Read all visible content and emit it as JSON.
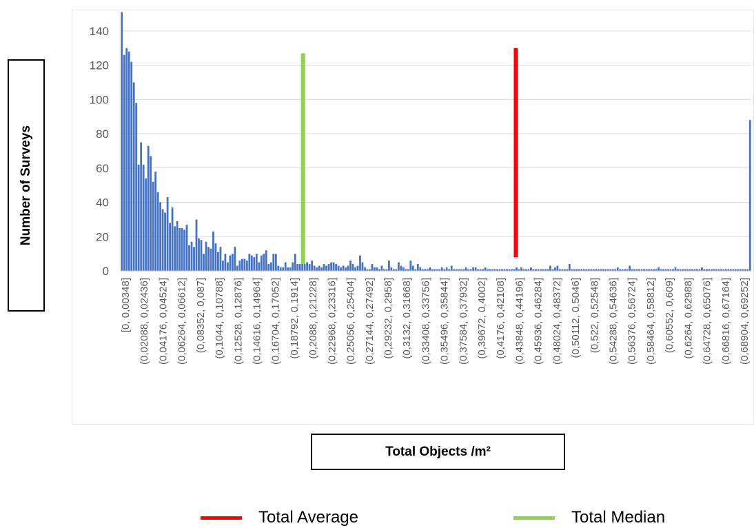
{
  "chart_data": {
    "type": "bar",
    "xlabel": "Total Objects /m²",
    "ylabel": "Number of Surveys",
    "ylim": [
      0,
      150
    ],
    "yticks": [
      0,
      20,
      40,
      60,
      80,
      100,
      120,
      140
    ],
    "bar_color": "#4472c4",
    "grid": true,
    "tick_labels": [
      "[0, 0,00348]",
      "(0,02088, 0,02436]",
      "(0,04176, 0,04524]",
      "(0,06264, 0,06612]",
      "(0,08352, 0,087]",
      "(0,1044, 0,10788]",
      "(0,12528, 0,12876]",
      "(0,14616, 0,14964]",
      "(0,16704, 0,17052]",
      "(0,18792, 0,1914]",
      "(0,2088, 0,21228]",
      "(0,22968, 0,23316]",
      "(0,25056, 0,25404]",
      "(0,27144, 0,27492]",
      "(0,29232, 0,2958]",
      "(0,3132, 0,31668]",
      "(0,33408, 0,33756]",
      "(0,35496, 0,35844]",
      "(0,37584, 0,37932]",
      "(0,39672, 0,4002]",
      "(0,4176, 0,42108]",
      "(0,43848, 0,44196]",
      "(0,45936, 0,46284]",
      "(0,48024, 0,48372]",
      "(0,50112, 0,5046]",
      "(0,522, 0,52548]",
      "(0,54288, 0,54636]",
      "(0,56376, 0,56724]",
      "(0,58464, 0,58812]",
      "(0,60552, 0,609]",
      "(0,6264, 0,62988]",
      "(0,64728, 0,65076]",
      "(0,66816, 0,67164]",
      "(0,68904, 0,69252]"
    ],
    "values": [
      151,
      126,
      130,
      128,
      122,
      110,
      98,
      62,
      75,
      62,
      54,
      73,
      67,
      52,
      58,
      46,
      40,
      36,
      34,
      43,
      28,
      37,
      26,
      29,
      25,
      25,
      24,
      27,
      15,
      17,
      14,
      30,
      19,
      18,
      10,
      17,
      14,
      13,
      23,
      16,
      11,
      14,
      6,
      10,
      5,
      9,
      10,
      14,
      3,
      6,
      7,
      7,
      6,
      10,
      9,
      8,
      10,
      5,
      9,
      10,
      12,
      4,
      5,
      10,
      10,
      3,
      2,
      2,
      5,
      2,
      2,
      5,
      10,
      4,
      4,
      4,
      4,
      5,
      4,
      6,
      3,
      2,
      3,
      2,
      4,
      3,
      4,
      5,
      5,
      4,
      3,
      2,
      3,
      2,
      3,
      6,
      4,
      2,
      3,
      9,
      5,
      2,
      1,
      1,
      4,
      2,
      2,
      1,
      3,
      1,
      1,
      6,
      2,
      1,
      1,
      5,
      3,
      2,
      1,
      1,
      6,
      3,
      1,
      4,
      2,
      1,
      1,
      1,
      2,
      1,
      1,
      1,
      1,
      2,
      1,
      2,
      1,
      3,
      1,
      1,
      1,
      1,
      1,
      2,
      1,
      1,
      2,
      2,
      1,
      1,
      1,
      2,
      1,
      1,
      1,
      1,
      1,
      1,
      1,
      1,
      1,
      1,
      1,
      1,
      2,
      1,
      2,
      1,
      1,
      1,
      2,
      1,
      1,
      1,
      1,
      1,
      1,
      1,
      3,
      1,
      2,
      3,
      1,
      1,
      1,
      1,
      4,
      1,
      1,
      1,
      1,
      1,
      1,
      1,
      1,
      1,
      1,
      1,
      1,
      1,
      1,
      1,
      1,
      1,
      1,
      1,
      2,
      1,
      1,
      1,
      1,
      3,
      1,
      1,
      1,
      1,
      1,
      1,
      1,
      1,
      1,
      1,
      1,
      2,
      1,
      1,
      1,
      1,
      1,
      1,
      2,
      1,
      1,
      1,
      1,
      1,
      1,
      1,
      1,
      1,
      1,
      2,
      1,
      1,
      1,
      1,
      1,
      1,
      1,
      1,
      1,
      1,
      1,
      1,
      1,
      1,
      1,
      1,
      1,
      1,
      1,
      88
    ],
    "reference_lines": [
      {
        "name": "Total Median",
        "x_bin": 0.21,
        "color": "#92d050",
        "y_top": 127,
        "y_bottom": 4
      },
      {
        "name": "Total Average",
        "x_bin": 0.455,
        "color": "#ff0000",
        "y_top": 130,
        "y_bottom": 8
      }
    ]
  },
  "legend": {
    "average_label": "Total Average",
    "median_label": "Total Median",
    "average_color": "#ff0000",
    "median_color": "#92d050"
  }
}
